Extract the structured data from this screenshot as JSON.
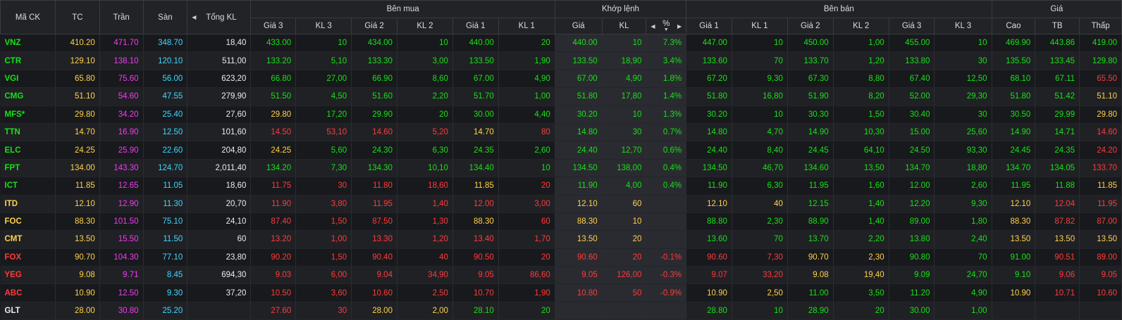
{
  "header": {
    "symbol": "Mã CK",
    "ref": "TC",
    "ceil": "Trần",
    "floor": "Sàn",
    "total_vol": "Tổng KL",
    "buy_group": "Bên mua",
    "match_group": "Khớp lệnh",
    "sell_group": "Bên bán",
    "price_group": "Giá",
    "buy_cols": [
      "Giá 3",
      "KL 3",
      "Giá 2",
      "KL 2",
      "Giá 1",
      "KL 1"
    ],
    "match_cols": [
      "Giá",
      "KL",
      "%"
    ],
    "sell_cols": [
      "Giá 1",
      "KL 1",
      "Giá 2",
      "KL 2",
      "Giá 3",
      "KL 3"
    ],
    "price_cols": [
      "Cao",
      "TB",
      "Thấp"
    ],
    "arrow_left": "◀",
    "arrow_right": "▶",
    "arrow_down": "▼"
  },
  "colors": {
    "green": "#16e216",
    "red": "#ff3b3b",
    "yellow": "#ffd24a",
    "purple": "#f23bf2",
    "cyan": "#3fd7ff",
    "white": "#ececec"
  },
  "rows": [
    {
      "sym": "VNZ",
      "symc": "green",
      "tc": "410.20",
      "tran": "471.70",
      "san": "348.70",
      "tkl": "18,40",
      "b3": "433.00",
      "bv3": "10",
      "b2": "434.00",
      "bv2": "10",
      "b1": "440.00",
      "bv1": "20",
      "bc": "green",
      "mp": "440.00",
      "mv": "10",
      "pct": "7.3%",
      "mc": "green",
      "s1": "447.00",
      "sv1": "10",
      "s2": "450.00",
      "sv2": "1,00",
      "s3": "455.00",
      "sv3": "10",
      "sc": "green",
      "hi": "469.90",
      "hic": "green",
      "avg": "443.86",
      "avgc": "green",
      "lo": "419.00",
      "loc": "green"
    },
    {
      "sym": "CTR",
      "symc": "green",
      "tc": "129.10",
      "tran": "138.10",
      "san": "120.10",
      "tkl": "511,00",
      "b3": "133.20",
      "bv3": "5,10",
      "b2": "133.30",
      "bv2": "3,00",
      "b1": "133.50",
      "bv1": "1,90",
      "bc": "green",
      "mp": "133.50",
      "mv": "18,90",
      "pct": "3.4%",
      "mc": "green",
      "s1": "133.60",
      "sv1": "70",
      "s2": "133.70",
      "sv2": "1,20",
      "s3": "133.80",
      "sv3": "30",
      "sc": "green",
      "hi": "135.50",
      "hic": "green",
      "avg": "133.45",
      "avgc": "green",
      "lo": "129.80",
      "loc": "green"
    },
    {
      "sym": "VGI",
      "symc": "green",
      "tc": "65.80",
      "tran": "75.60",
      "san": "56.00",
      "tkl": "623,20",
      "b3": "66.80",
      "bv3": "27,00",
      "b2": "66.90",
      "bv2": "8,60",
      "b1": "67.00",
      "bv1": "4,90",
      "bc": "green",
      "mp": "67.00",
      "mv": "4,90",
      "pct": "1.8%",
      "mc": "green",
      "s1": "67.20",
      "sv1": "9,30",
      "s2": "67.30",
      "sv2": "8,80",
      "s3": "67.40",
      "sv3": "12,50",
      "sc": "green",
      "hi": "68.10",
      "hic": "green",
      "avg": "67.11",
      "avgc": "green",
      "lo": "65.50",
      "loc": "red"
    },
    {
      "sym": "CMG",
      "symc": "green",
      "tc": "51.10",
      "tran": "54.60",
      "san": "47.55",
      "tkl": "279,90",
      "b3": "51.50",
      "bv3": "4,50",
      "b2": "51.60",
      "bv2": "2,20",
      "b1": "51.70",
      "bv1": "1,00",
      "bc": "green",
      "mp": "51.80",
      "mv": "17,80",
      "pct": "1.4%",
      "mc": "green",
      "s1": "51.80",
      "sv1": "16,80",
      "s2": "51.90",
      "sv2": "8,20",
      "s3": "52.00",
      "sv3": "29,30",
      "sc": "green",
      "hi": "51.80",
      "hic": "green",
      "avg": "51.42",
      "avgc": "green",
      "lo": "51.10",
      "loc": "yellow"
    },
    {
      "sym": "MFS*",
      "symc": "green",
      "tc": "29.80",
      "tran": "34.20",
      "san": "25.40",
      "tkl": "27,60",
      "b3": "29.80",
      "bv3": "17,20",
      "b2": "29.90",
      "bv2": "20",
      "b1": "30.00",
      "bv1": "4,40",
      "bc": "green",
      "b3c": "yellow",
      "mp": "30.20",
      "mv": "10",
      "pct": "1.3%",
      "mc": "green",
      "s1": "30.20",
      "sv1": "10",
      "s2": "30.30",
      "sv2": "1,50",
      "s3": "30.40",
      "sv3": "30",
      "sc": "green",
      "hi": "30.50",
      "hic": "green",
      "avg": "29.99",
      "avgc": "green",
      "lo": "29.80",
      "loc": "yellow"
    },
    {
      "sym": "TTN",
      "symc": "green",
      "tc": "14.70",
      "tran": "16.90",
      "san": "12.50",
      "tkl": "101,60",
      "b3": "14.50",
      "bv3": "53,10",
      "b2": "14.60",
      "bv2": "5,20",
      "b1": "14.70",
      "bv1": "80",
      "bc": "red",
      "b1c": "yellow",
      "mp": "14.80",
      "mv": "30",
      "pct": "0.7%",
      "mc": "green",
      "s1": "14.80",
      "sv1": "4,70",
      "s2": "14.90",
      "sv2": "10,30",
      "s3": "15.00",
      "sv3": "25,60",
      "sc": "green",
      "hi": "14.90",
      "hic": "green",
      "avg": "14.71",
      "avgc": "green",
      "lo": "14.60",
      "loc": "red"
    },
    {
      "sym": "ELC",
      "symc": "green",
      "tc": "24.25",
      "tran": "25.90",
      "san": "22.60",
      "tkl": "204,80",
      "b3": "24.25",
      "bv3": "5,60",
      "b2": "24.30",
      "bv2": "6,30",
      "b1": "24.35",
      "bv1": "2,60",
      "bc": "green",
      "b3c": "yellow",
      "mp": "24.40",
      "mv": "12,70",
      "pct": "0.6%",
      "mc": "green",
      "s1": "24.40",
      "sv1": "8,40",
      "s2": "24.45",
      "sv2": "64,10",
      "s3": "24.50",
      "sv3": "93,30",
      "sc": "green",
      "hi": "24.45",
      "hic": "green",
      "avg": "24.35",
      "avgc": "green",
      "lo": "24.20",
      "loc": "red"
    },
    {
      "sym": "FPT",
      "symc": "green",
      "tc": "134.00",
      "tran": "143.30",
      "san": "124.70",
      "tkl": "2,011,40",
      "b3": "134.20",
      "bv3": "7,30",
      "b2": "134.30",
      "bv2": "10,10",
      "b1": "134.40",
      "bv1": "10",
      "bc": "green",
      "mp": "134.50",
      "mv": "138,00",
      "pct": "0.4%",
      "mc": "green",
      "s1": "134.50",
      "sv1": "46,70",
      "s2": "134.60",
      "sv2": "13,50",
      "s3": "134.70",
      "sv3": "18,80",
      "sc": "green",
      "hi": "134.70",
      "hic": "green",
      "avg": "134.05",
      "avgc": "green",
      "lo": "133.70",
      "loc": "red"
    },
    {
      "sym": "ICT",
      "symc": "green",
      "tc": "11.85",
      "tran": "12.65",
      "san": "11.05",
      "tkl": "18,60",
      "b3": "11.75",
      "bv3": "30",
      "b2": "11.80",
      "bv2": "18,60",
      "b1": "11.85",
      "bv1": "20",
      "bc": "red",
      "b1c": "yellow",
      "mp": "11.90",
      "mv": "4,00",
      "pct": "0.4%",
      "mc": "green",
      "s1": "11.90",
      "sv1": "6,30",
      "s2": "11.95",
      "sv2": "1,60",
      "s3": "12.00",
      "sv3": "2,60",
      "sc": "green",
      "hi": "11.95",
      "hic": "green",
      "avg": "11.88",
      "avgc": "green",
      "lo": "11.85",
      "loc": "yellow"
    },
    {
      "sym": "ITD",
      "symc": "yellow",
      "tc": "12.10",
      "tran": "12.90",
      "san": "11.30",
      "tkl": "20,70",
      "b3": "11.90",
      "bv3": "3,80",
      "b2": "11.95",
      "bv2": "1,40",
      "b1": "12.00",
      "bv1": "3,00",
      "bc": "red",
      "mp": "12.10",
      "mv": "60",
      "pct": "",
      "mc": "yellow",
      "s1": "12.10",
      "sv1": "40",
      "s2": "12.15",
      "sv2": "1,40",
      "s3": "12.20",
      "sv3": "9,30",
      "sc": "green",
      "s1c": "yellow",
      "sv1c": "yellow",
      "hi": "12.10",
      "hic": "yellow",
      "avg": "12.04",
      "avgc": "red",
      "lo": "11.95",
      "loc": "red"
    },
    {
      "sym": "FOC",
      "symc": "yellow",
      "tc": "88.30",
      "tran": "101.50",
      "san": "75.10",
      "tkl": "24,10",
      "b3": "87.40",
      "bv3": "1,50",
      "b2": "87.50",
      "bv2": "1,30",
      "b1": "88.30",
      "bv1": "60",
      "bc": "red",
      "b1c": "yellow",
      "mp": "88.30",
      "mv": "10",
      "pct": "",
      "mc": "yellow",
      "s1": "88.80",
      "sv1": "2,30",
      "s2": "88.90",
      "sv2": "1,40",
      "s3": "89.00",
      "sv3": "1,80",
      "sc": "green",
      "hi": "88.30",
      "hic": "yellow",
      "avg": "87.82",
      "avgc": "red",
      "lo": "87.00",
      "loc": "red"
    },
    {
      "sym": "CMT",
      "symc": "yellow",
      "tc": "13.50",
      "tran": "15.50",
      "san": "11.50",
      "tkl": "60",
      "b3": "13.20",
      "bv3": "1,00",
      "b2": "13.30",
      "bv2": "1,20",
      "b1": "13.40",
      "bv1": "1,70",
      "bc": "red",
      "mp": "13.50",
      "mv": "20",
      "pct": "",
      "mc": "yellow",
      "s1": "13.60",
      "sv1": "70",
      "s2": "13.70",
      "sv2": "2,20",
      "s3": "13.80",
      "sv3": "2,40",
      "sc": "green",
      "hi": "13.50",
      "hic": "yellow",
      "avg": "13.50",
      "avgc": "yellow",
      "lo": "13.50",
      "loc": "yellow"
    },
    {
      "sym": "FOX",
      "symc": "red",
      "tc": "90.70",
      "tran": "104.30",
      "san": "77.10",
      "tkl": "23,80",
      "b3": "90.20",
      "bv3": "1,50",
      "b2": "90.40",
      "bv2": "40",
      "b1": "90.50",
      "bv1": "20",
      "bc": "red",
      "mp": "90.60",
      "mv": "20",
      "pct": "-0.1%",
      "mc": "red",
      "s1": "90.60",
      "sv1": "7,30",
      "s2": "90.70",
      "sv2": "2,30",
      "s3": "90.80",
      "sv3": "70",
      "sc": "green",
      "s1c": "red",
      "sv1c": "red",
      "s2c": "yellow",
      "sv2c": "yellow",
      "hi": "91.00",
      "hic": "green",
      "avg": "90.51",
      "avgc": "red",
      "lo": "89.00",
      "loc": "red"
    },
    {
      "sym": "YEG",
      "symc": "red",
      "tc": "9.08",
      "tran": "9.71",
      "san": "8.45",
      "tkl": "694,30",
      "b3": "9.03",
      "bv3": "6,00",
      "b2": "9.04",
      "bv2": "34,90",
      "b1": "9.05",
      "bv1": "86,60",
      "bc": "red",
      "mp": "9.05",
      "mv": "126,00",
      "pct": "-0.3%",
      "mc": "red",
      "s1": "9.07",
      "sv1": "33,20",
      "s2": "9.08",
      "sv2": "19,40",
      "s3": "9.09",
      "sv3": "24,70",
      "sc": "green",
      "s1c": "red",
      "sv1c": "red",
      "s2c": "yellow",
      "sv2c": "yellow",
      "hi": "9.10",
      "hic": "green",
      "avg": "9.06",
      "avgc": "red",
      "lo": "9.05",
      "loc": "red"
    },
    {
      "sym": "ABC",
      "symc": "red",
      "tc": "10.90",
      "tran": "12.50",
      "san": "9.30",
      "tkl": "37,20",
      "b3": "10.50",
      "bv3": "3,60",
      "b2": "10.60",
      "bv2": "2,50",
      "b1": "10.70",
      "bv1": "1,90",
      "bc": "red",
      "mp": "10.80",
      "mv": "50",
      "pct": "-0.9%",
      "mc": "red",
      "s1": "10.90",
      "sv1": "2,50",
      "s2": "11.00",
      "sv2": "3,50",
      "s3": "11.20",
      "sv3": "4,90",
      "sc": "green",
      "s1c": "yellow",
      "sv1c": "yellow",
      "hi": "10.90",
      "hic": "yellow",
      "avg": "10.71",
      "avgc": "red",
      "lo": "10.60",
      "loc": "red"
    },
    {
      "sym": "GLT",
      "symc": "white",
      "tc": "28.00",
      "tran": "30.80",
      "san": "25.20",
      "tkl": "",
      "b3": "27.60",
      "bv3": "30",
      "b2": "28.00",
      "bv2": "2,00",
      "b1": "28.10",
      "bv1": "20",
      "bc": "red",
      "b2c": "yellow",
      "bv2c": "yellow",
      "b1c": "green",
      "bv1c": "green",
      "mp": "",
      "mv": "",
      "pct": "",
      "mc": "white",
      "s1": "28.80",
      "sv1": "10",
      "s2": "28.90",
      "sv2": "20",
      "s3": "30.00",
      "sv3": "1,00",
      "sc": "green",
      "hi": "",
      "hic": "white",
      "avg": "",
      "avgc": "white",
      "lo": "",
      "loc": "white"
    }
  ]
}
